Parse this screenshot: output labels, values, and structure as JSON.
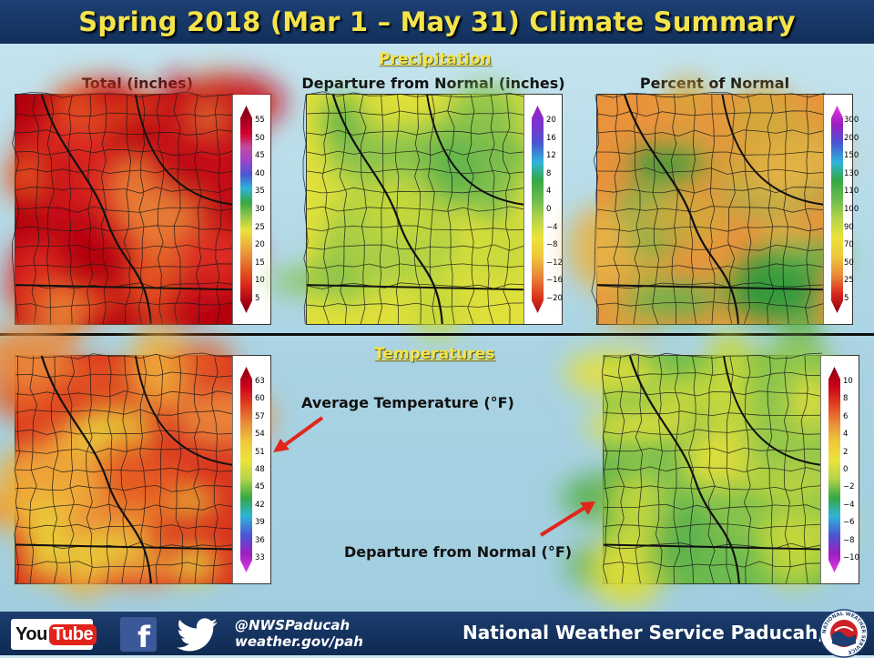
{
  "title": "Spring 2018 (Mar 1 – May 31) Climate Summary",
  "sections": {
    "precipitation": "Precipitation",
    "temperatures": "Temperatures"
  },
  "precip_maps": [
    {
      "title": "Total (inches)",
      "legend_ticks": [
        "55",
        "50",
        "45",
        "40",
        "35",
        "30",
        "25",
        "20",
        "15",
        "10",
        "5"
      ],
      "colors": [
        "#b3000f",
        "#c9131a",
        "#dd2a20",
        "#e55520",
        "#e98537"
      ]
    },
    {
      "title": "Departure from Normal (inches)",
      "legend_ticks": [
        "20",
        "16",
        "12",
        "8",
        "4",
        "0",
        "−4",
        "−8",
        "−12",
        "−16",
        "−20"
      ],
      "colors": [
        "#dfe03a",
        "#c5d83c",
        "#86c24e",
        "#5fb44d",
        "#a9cf45"
      ]
    },
    {
      "title": "Percent of Normal",
      "legend_ticks": [
        "300",
        "200",
        "150",
        "130",
        "110",
        "100",
        "90",
        "70",
        "50",
        "25",
        "5"
      ],
      "colors": [
        "#e9933c",
        "#d4a83c",
        "#5fb44d",
        "#2f9a3c",
        "#e7b346"
      ]
    }
  ],
  "temp_maps": [
    {
      "title": "Average Temperature (°F)",
      "legend_ticks": [
        "63",
        "60",
        "57",
        "54",
        "51",
        "48",
        "45",
        "42",
        "39",
        "36",
        "33"
      ],
      "colors": [
        "#d9331e",
        "#e55b22",
        "#ea8a3a",
        "#f0ad3a",
        "#e8d03a"
      ]
    },
    {
      "title": "Departure from Normal (°F)",
      "legend_ticks": [
        "10",
        "8",
        "6",
        "4",
        "2",
        "0",
        "−2",
        "−4",
        "−6",
        "−8",
        "−10"
      ],
      "colors": [
        "#6dbb4f",
        "#5ab04b",
        "#c8d83c",
        "#e4e03a",
        "#8fc64a"
      ]
    }
  ],
  "footer": {
    "youtube_you": "You",
    "youtube_tube": "Tube",
    "facebook_glyph": "f",
    "twitter_handle": "@NWSPaducah",
    "website": "weather.gov/pah",
    "office_name": "National Weather Service Paducah, KY"
  },
  "logo_text": "NATIONAL WEATHER SERVICE",
  "brand_colors": {
    "header_bg": "#11305c",
    "title_yellow": "#f4e34a",
    "arrow_red": "#e1261c"
  }
}
